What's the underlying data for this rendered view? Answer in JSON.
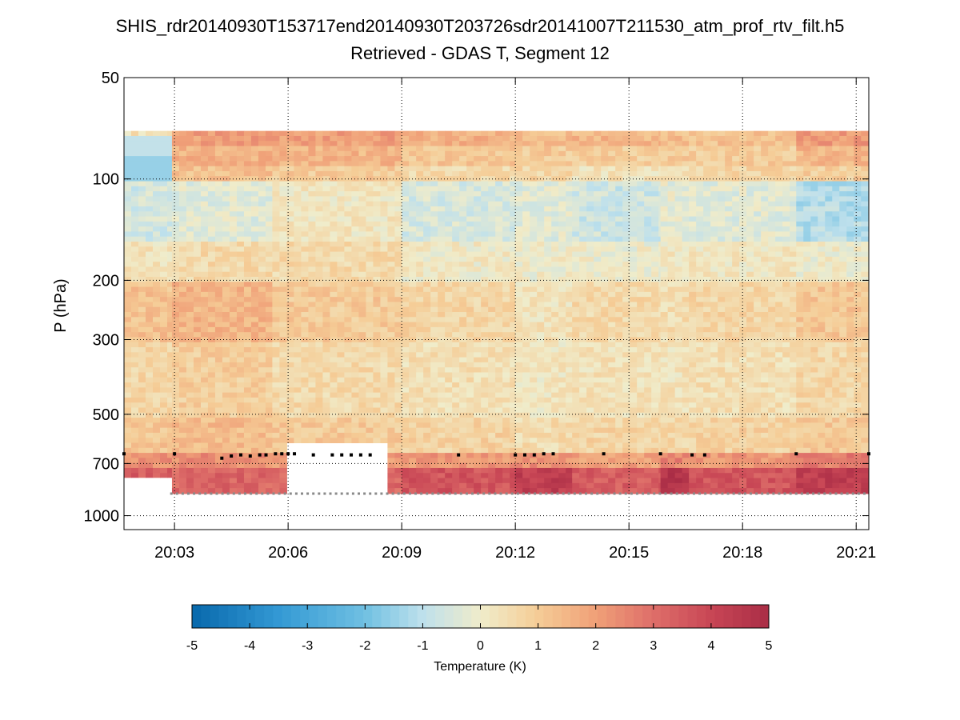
{
  "chart_data": {
    "type": "heatmap",
    "title": "SHIS_rdr20140930T153717end20140930T203726sdr20141007T211530_atm_prof_rtv_filt.h5",
    "subtitle": "Retrieved - GDAS T, Segment 12",
    "ylabel": "P (hPa)",
    "y_scale": "log",
    "y_reversed": true,
    "ylim": [
      50,
      1100
    ],
    "yticks": [
      50,
      100,
      200,
      300,
      500,
      700,
      1000
    ],
    "xlim": [
      "20:01:40",
      "20:21:20"
    ],
    "xticks": [
      "20:03",
      "20:06",
      "20:09",
      "20:12",
      "20:15",
      "20:18",
      "20:21"
    ],
    "grid": true,
    "colorbar": {
      "label": "Temperature (K)",
      "range": [
        -5,
        5
      ],
      "ticks": [
        -5,
        -4,
        -3,
        -2,
        -1,
        0,
        1,
        2,
        3,
        4,
        5
      ],
      "colormap": "diverging blue-cream-red"
    },
    "profile_top_hPa": 72,
    "regions": [
      {
        "t0": "20:01:40",
        "t1": "20:02:56",
        "sfc_hPa": 770,
        "t_top": 0.4,
        "t_upper": 1.6,
        "t_trop": -0.6,
        "t_mid": 1.2,
        "t_bl": 3.4,
        "wedge_c": -0.9
      },
      {
        "t0": "20:02:56",
        "t1": "20:05:35",
        "sfc_hPa": 860,
        "t_top": 2.0,
        "t_upper": 1.2,
        "t_trop": -0.3,
        "t_mid": 1.5,
        "t_bl": 3.2
      },
      {
        "t0": "20:05:35",
        "t1": "20:09:00",
        "sfc_hPa": 860,
        "gap_top_hPa": 600,
        "t_top": 2.0,
        "t_upper": 1.0,
        "t_trop": 0.2,
        "t_mid": 1.0,
        "t_bl": 3.1
      },
      {
        "t0": "20:09:00",
        "t1": "20:12:00",
        "sfc_hPa": 860,
        "t_top": 1.6,
        "t_upper": 0.6,
        "t_trop": -0.5,
        "t_mid": 0.7,
        "t_bl": 3.6
      },
      {
        "t0": "20:12:00",
        "t1": "20:13:30",
        "sfc_hPa": 860,
        "t_top": 1.3,
        "t_upper": 0.7,
        "t_trop": -0.3,
        "t_mid": 0.3,
        "t_bl": 4.3
      },
      {
        "t0": "20:13:30",
        "t1": "20:15:50",
        "sfc_hPa": 860,
        "t_top": 1.5,
        "t_upper": 0.3,
        "t_trop": -0.7,
        "t_mid": 0.6,
        "t_bl": 3.4
      },
      {
        "t0": "20:15:50",
        "t1": "20:16:35",
        "sfc_hPa": 860,
        "t_top": 1.3,
        "t_upper": 0.6,
        "t_trop": -0.2,
        "t_mid": 0.5,
        "t_bl": 4.6
      },
      {
        "t0": "20:16:35",
        "t1": "20:19:25",
        "sfc_hPa": 860,
        "t_top": 1.2,
        "t_upper": 0.7,
        "t_trop": -0.3,
        "t_mid": 0.7,
        "t_bl": 3.6
      },
      {
        "t0": "20:19:25",
        "t1": "20:21:20",
        "sfc_hPa": 860,
        "t_top": 2.1,
        "t_upper": 0.9,
        "t_trop": -1.1,
        "t_mid": 1.1,
        "t_bl": 4.3
      }
    ],
    "markers": {
      "black_hPa": [
        655,
        655,
        675,
        665,
        660,
        665,
        660,
        660,
        655,
        655,
        655,
        655,
        660,
        660,
        660,
        660,
        660,
        660,
        660,
        660,
        660,
        660,
        655,
        655,
        655,
        655,
        660,
        660,
        655,
        655
      ],
      "black_times": [
        "20:01:40",
        "20:03:00",
        "20:04:15",
        "20:04:30",
        "20:04:45",
        "20:05:00",
        "20:05:15",
        "20:05:25",
        "20:05:40",
        "20:05:50",
        "20:06:00",
        "20:06:10",
        "20:06:40",
        "20:07:10",
        "20:07:25",
        "20:07:40",
        "20:07:55",
        "20:08:10",
        "20:10:30",
        "20:12:00",
        "20:12:15",
        "20:12:30",
        "20:12:45",
        "20:13:00",
        "20:14:20",
        "20:15:50",
        "20:16:40",
        "20:17:00",
        "20:19:25",
        "20:21:20"
      ],
      "gray_hPa": 860
    }
  }
}
